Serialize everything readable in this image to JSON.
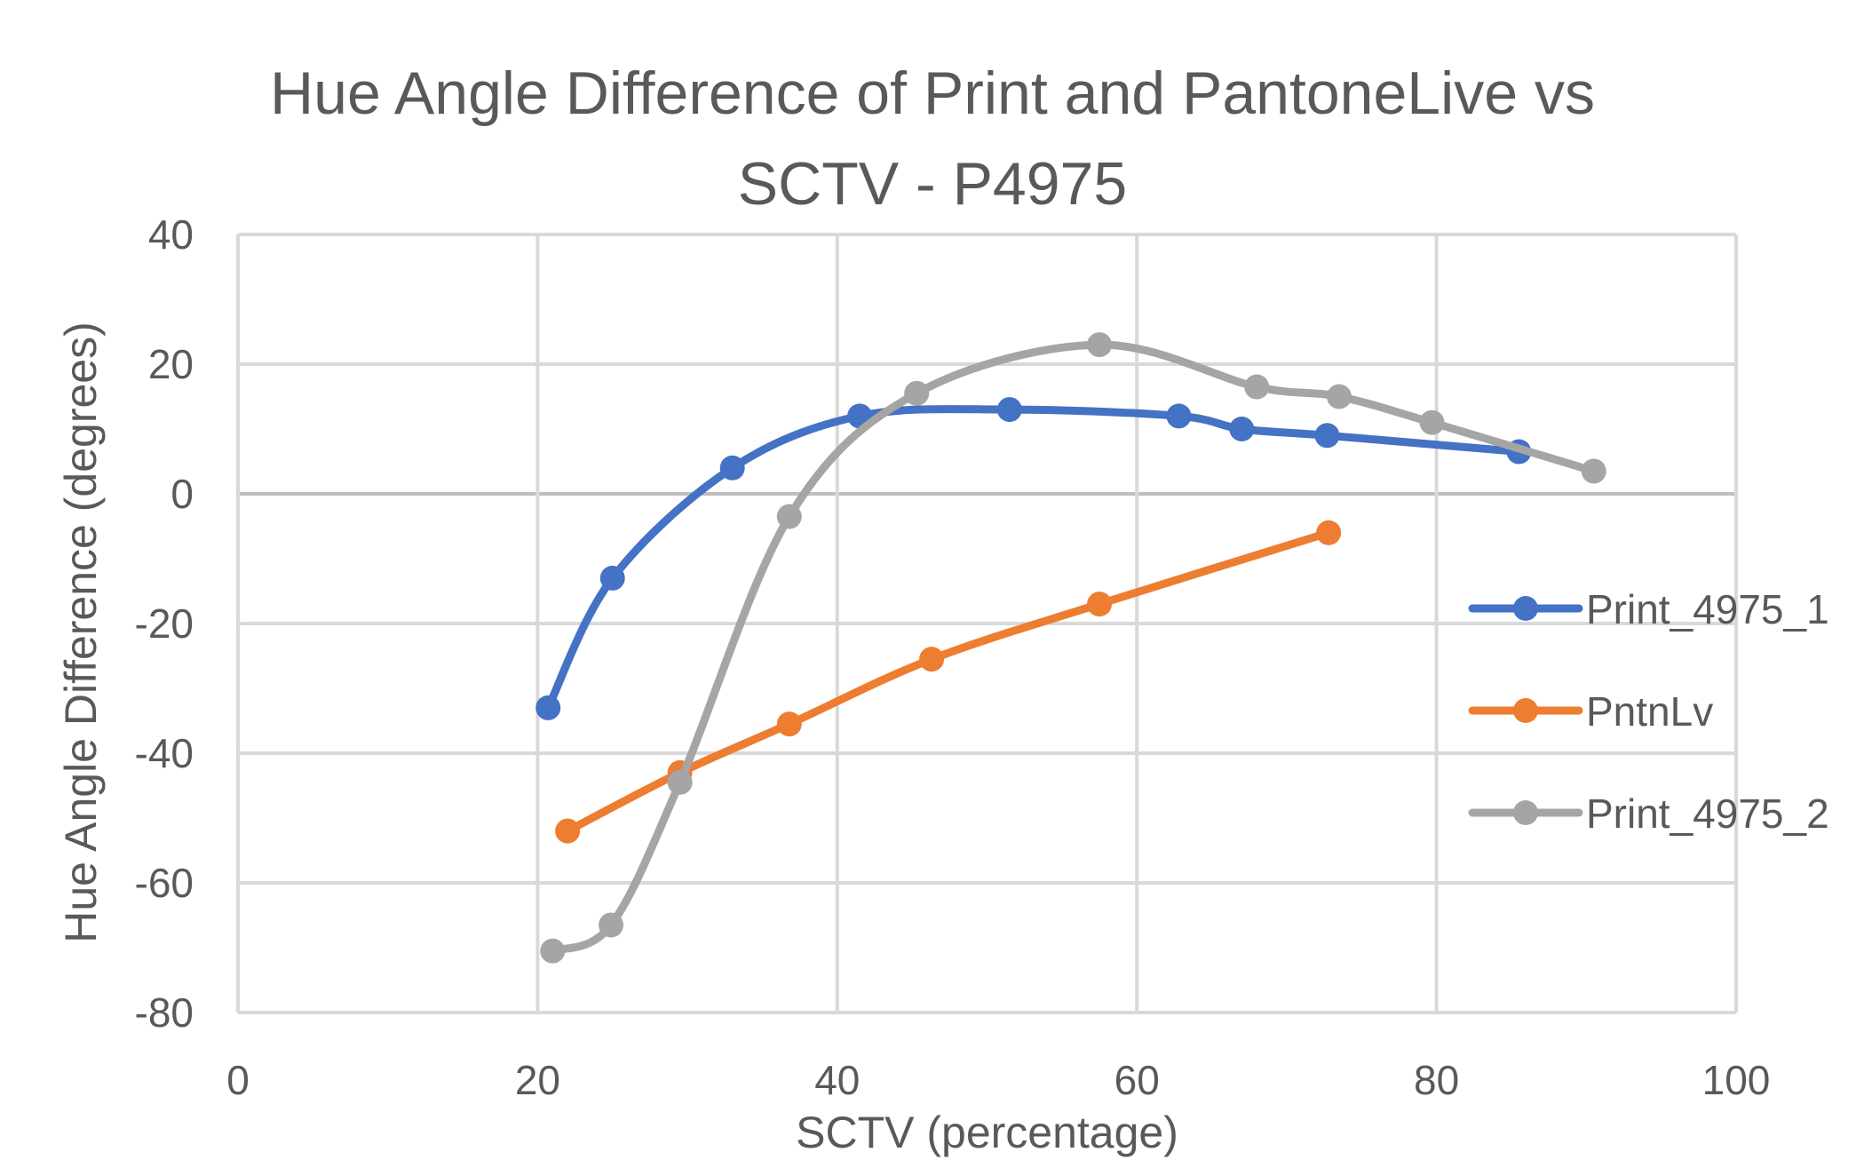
{
  "chart_data": {
    "type": "scatter",
    "title_lines": [
      "Hue Angle Difference of Print and PantoneLive vs",
      "SCTV - P4975"
    ],
    "xlabel": "SCTV (percentage)",
    "ylabel": "Hue Angle Difference (degrees)",
    "xlim": [
      0,
      100
    ],
    "ylim": [
      -80,
      40
    ],
    "x_ticks": [
      0,
      20,
      40,
      60,
      80,
      100
    ],
    "y_ticks": [
      40,
      20,
      0,
      -20,
      -40,
      -60,
      -80
    ],
    "grid": true,
    "smoothed_lines": true,
    "legend_position": "right",
    "series": [
      {
        "name": "Print_4975_1",
        "color": "#4472C4",
        "points": [
          {
            "x": 20.7,
            "y": -33
          },
          {
            "x": 25.0,
            "y": -13
          },
          {
            "x": 33.0,
            "y": 4
          },
          {
            "x": 41.5,
            "y": 12
          },
          {
            "x": 51.5,
            "y": 13
          },
          {
            "x": 62.8,
            "y": 12
          },
          {
            "x": 67.0,
            "y": 10
          },
          {
            "x": 72.7,
            "y": 9
          },
          {
            "x": 85.5,
            "y": 6.5
          }
        ]
      },
      {
        "name": "PntnLv",
        "color": "#ED7D31",
        "points": [
          {
            "x": 22.0,
            "y": -52
          },
          {
            "x": 29.5,
            "y": -43
          },
          {
            "x": 36.8,
            "y": -35.5
          },
          {
            "x": 46.3,
            "y": -25.5
          },
          {
            "x": 57.5,
            "y": -17
          },
          {
            "x": 72.8,
            "y": -6
          }
        ]
      },
      {
        "name": "Print_4975_2",
        "color": "#A5A5A5",
        "points": [
          {
            "x": 21.0,
            "y": -70.5
          },
          {
            "x": 24.9,
            "y": -66.5
          },
          {
            "x": 29.5,
            "y": -44.5
          },
          {
            "x": 36.8,
            "y": -3.5
          },
          {
            "x": 45.3,
            "y": 15.5
          },
          {
            "x": 57.5,
            "y": 23
          },
          {
            "x": 68.0,
            "y": 16.5
          },
          {
            "x": 73.5,
            "y": 15
          },
          {
            "x": 79.7,
            "y": 11
          },
          {
            "x": 90.5,
            "y": 3.5
          }
        ]
      }
    ]
  }
}
